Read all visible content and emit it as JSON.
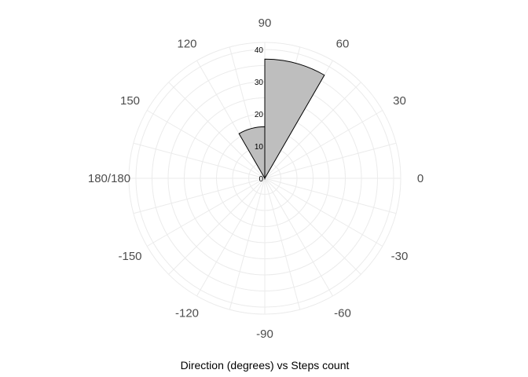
{
  "chart_data": {
    "type": "bar",
    "coord": "polar",
    "caption": "Direction (degrees) vs Steps count",
    "angle_ticks": [
      {
        "value": 0,
        "label": "0"
      },
      {
        "value": 30,
        "label": "30"
      },
      {
        "value": 60,
        "label": "60"
      },
      {
        "value": 90,
        "label": "90"
      },
      {
        "value": 120,
        "label": "120"
      },
      {
        "value": 150,
        "label": "150"
      },
      {
        "value": 180,
        "label": "180/180"
      },
      {
        "value": -150,
        "label": "-150"
      },
      {
        "value": -120,
        "label": "-120"
      },
      {
        "value": -90,
        "label": "-90"
      },
      {
        "value": -60,
        "label": "-60"
      },
      {
        "value": -30,
        "label": "-30"
      }
    ],
    "radial_ticks": [
      {
        "value": 0,
        "label": "0"
      },
      {
        "value": 10,
        "label": "10"
      },
      {
        "value": 20,
        "label": "20"
      },
      {
        "value": 30,
        "label": "30"
      },
      {
        "value": 40,
        "label": "40"
      }
    ],
    "rlim": [
      0,
      40
    ],
    "bars": [
      {
        "from_deg": 60,
        "to_deg": 90,
        "count": 37
      },
      {
        "from_deg": 90,
        "to_deg": 120,
        "count": 16
      }
    ],
    "fill_color": "#bebebe",
    "stroke_color": "#000000",
    "grid": true
  }
}
